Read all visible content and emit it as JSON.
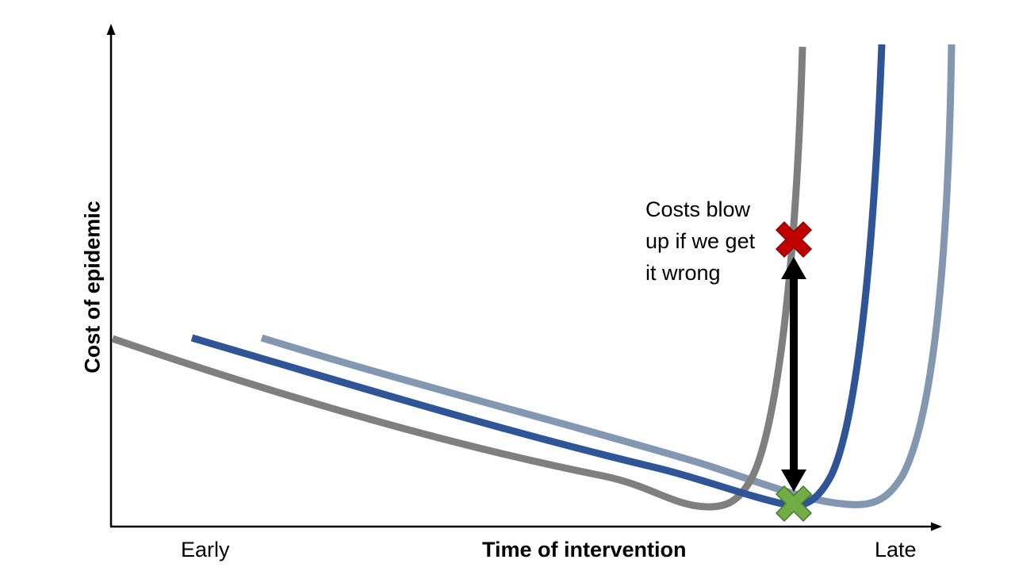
{
  "axes": {
    "y_title": "Cost of epidemic",
    "x_title": "Time of intervention",
    "x_tick_start": "Early",
    "x_tick_end": "Late"
  },
  "annotation": {
    "lines": [
      "Costs blow",
      "up if we get",
      "it wrong"
    ]
  },
  "markers": {
    "wrong_timing": {
      "meaning": "high cost",
      "color": "#C00000"
    },
    "optimal_timing": {
      "meaning": "minimum cost",
      "color": "#70AD47"
    }
  },
  "arrow": {
    "type": "double-headed",
    "color": "#000000"
  },
  "curves": [
    {
      "name": "early-epidemic-curve",
      "color": "#7F7F7F"
    },
    {
      "name": "middle-epidemic-curve",
      "color": "#2F5597"
    },
    {
      "name": "late-epidemic-curve",
      "color": "#8497B0"
    }
  ]
}
